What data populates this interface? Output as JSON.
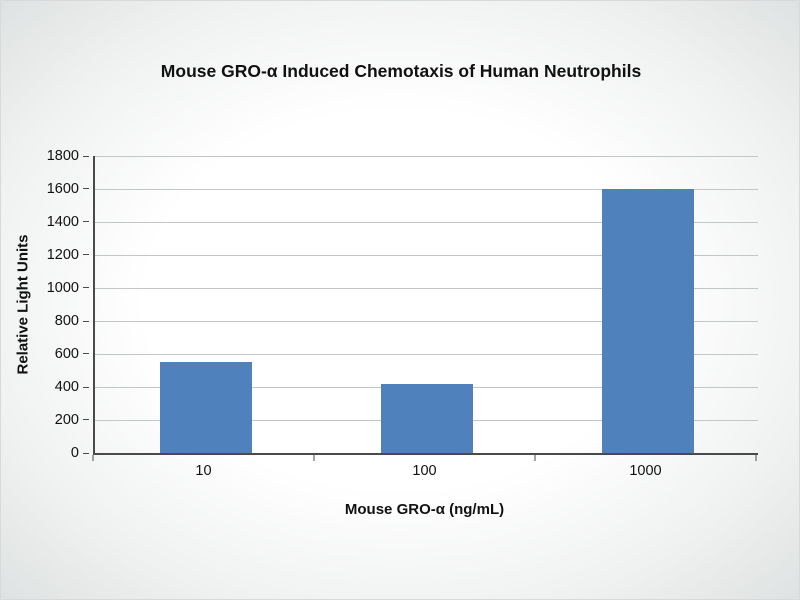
{
  "chart_data": {
    "type": "bar",
    "title": "Mouse GRO-α Induced Chemotaxis of Human Neutrophils",
    "xlabel": "Mouse GRO-α (ng/mL)",
    "ylabel": "Relative Light Units",
    "categories": [
      "10",
      "100",
      "1000"
    ],
    "values": [
      550,
      420,
      1600
    ],
    "ylim": [
      0,
      1800
    ],
    "yticks": [
      "0",
      "200",
      "400",
      "600",
      "800",
      "1000",
      "1200",
      "1400",
      "1600",
      "1800"
    ],
    "grid": true,
    "legend": false,
    "bar_color": "#4f81bd",
    "axis_color": "#4a4a4a",
    "gridline_color": "#c3c6c6"
  }
}
